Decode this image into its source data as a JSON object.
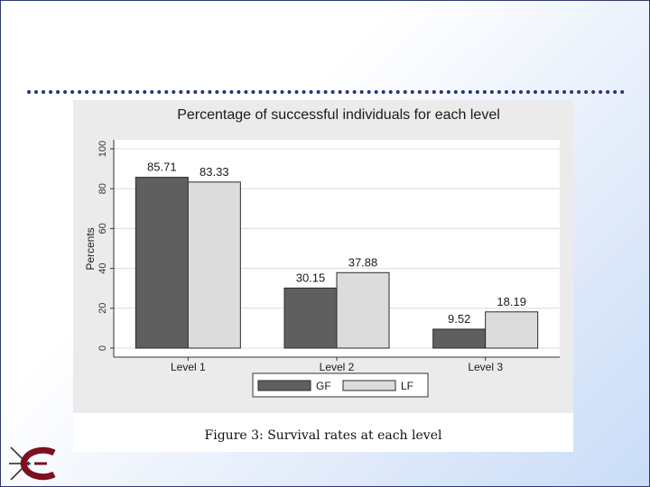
{
  "figure": {
    "caption": "Figure 3: Survival rates at each level"
  },
  "chart_data": {
    "type": "bar",
    "title": "Percentage of successful individuals for each level",
    "ylabel": "Percents",
    "xlabel": "",
    "categories": [
      "Level 1",
      "Level 2",
      "Level 3"
    ],
    "series": [
      {
        "name": "GF",
        "values": [
          85.71,
          30.15,
          9.52
        ],
        "color": "#5f5f5f"
      },
      {
        "name": "LF",
        "values": [
          83.33,
          37.88,
          18.19
        ],
        "color": "#dcdcdc"
      }
    ],
    "value_labels": [
      [
        "85.71",
        "30.15",
        "9.52"
      ],
      [
        "83.33",
        "37.88",
        "18.19"
      ]
    ],
    "ylim": [
      0,
      100
    ],
    "yticks": [
      0,
      20,
      40,
      60,
      80,
      100
    ],
    "grid": true,
    "legend_position": "bottom"
  },
  "colors": {
    "accent": "#26337a",
    "logo": "#7a1020"
  }
}
